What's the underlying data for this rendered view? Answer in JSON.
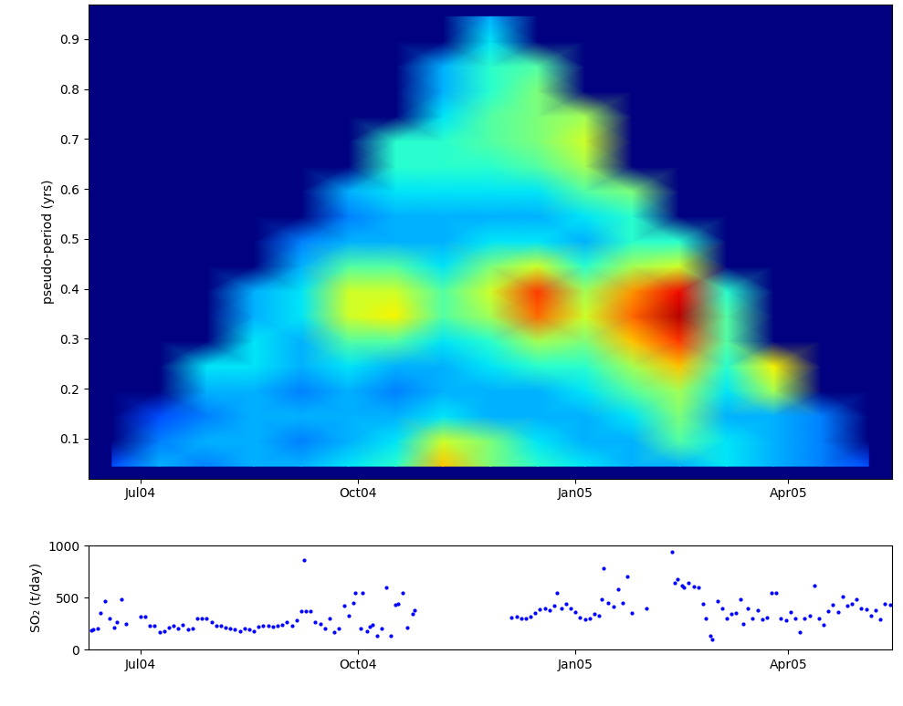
{
  "chart_data": [
    {
      "type": "heatmap",
      "ylabel": "pseudo-period (yrs)",
      "xlim": [
        160,
        500
      ],
      "ylim": [
        0.02,
        0.97
      ],
      "xticks": [
        {
          "value": 182,
          "label": "Jul04"
        },
        {
          "value": 274,
          "label": "Oct04"
        },
        {
          "value": 366,
          "label": "Jan05"
        },
        {
          "value": 456,
          "label": "Apr05"
        }
      ],
      "yticks": [
        0.1,
        0.2,
        0.3,
        0.4,
        0.5,
        0.6,
        0.7,
        0.8,
        0.9
      ],
      "zlim": [
        0,
        1
      ],
      "x": [
        170,
        190,
        210,
        230,
        250,
        270,
        290,
        310,
        330,
        350,
        370,
        390,
        410,
        430,
        450,
        470,
        490
      ],
      "y": [
        0.045,
        0.095,
        0.145,
        0.195,
        0.245,
        0.295,
        0.345,
        0.395,
        0.445,
        0.495,
        0.545,
        0.595,
        0.645,
        0.695,
        0.745,
        0.795,
        0.845,
        0.895,
        0.945
      ],
      "cells": [
        [
          0.2,
          0.3,
          0.25,
          0.3,
          0.3,
          0.35,
          0.4,
          0.7,
          0.5,
          0.4,
          0.35,
          0.3,
          0.3,
          0.35,
          0.3,
          0.25,
          0.2
        ],
        [
          0,
          0.25,
          0.3,
          0.3,
          0.25,
          0.3,
          0.35,
          0.6,
          0.5,
          0.35,
          0.3,
          0.3,
          0.45,
          0.35,
          0.3,
          0.25,
          0
        ],
        [
          0,
          0.2,
          0.25,
          0.3,
          0.3,
          0.3,
          0.3,
          0.35,
          0.3,
          0.3,
          0.3,
          0.35,
          0.5,
          0.3,
          0.3,
          0.25,
          0
        ],
        [
          0,
          0,
          0.3,
          0.3,
          0.25,
          0.3,
          0.25,
          0.3,
          0.3,
          0.3,
          0.35,
          0.45,
          0.55,
          0.35,
          0.55,
          0,
          0
        ],
        [
          0,
          0,
          0.35,
          0.35,
          0.3,
          0.35,
          0.3,
          0.3,
          0.35,
          0.4,
          0.4,
          0.55,
          0.7,
          0.4,
          0.65,
          0,
          0
        ],
        [
          0,
          0,
          0,
          0.35,
          0.3,
          0.45,
          0.45,
          0.35,
          0.4,
          0.55,
          0.5,
          0.7,
          0.85,
          0.45,
          0,
          0,
          0
        ],
        [
          0,
          0,
          0,
          0.3,
          0.35,
          0.6,
          0.65,
          0.45,
          0.55,
          0.8,
          0.6,
          0.8,
          0.95,
          0.45,
          0,
          0,
          0
        ],
        [
          0,
          0,
          0,
          0.3,
          0.35,
          0.6,
          0.6,
          0.45,
          0.6,
          0.85,
          0.55,
          0.75,
          0.9,
          0.4,
          0,
          0,
          0
        ],
        [
          0,
          0,
          0,
          0,
          0.3,
          0.45,
          0.45,
          0.35,
          0.5,
          0.6,
          0.4,
          0.55,
          0.6,
          0,
          0,
          0,
          0
        ],
        [
          0,
          0,
          0,
          0,
          0.25,
          0.3,
          0.3,
          0.3,
          0.35,
          0.35,
          0.3,
          0.4,
          0.4,
          0,
          0,
          0,
          0
        ],
        [
          0,
          0,
          0,
          0,
          0,
          0.25,
          0.3,
          0.3,
          0.3,
          0.3,
          0.35,
          0.4,
          0,
          0,
          0,
          0,
          0
        ],
        [
          0,
          0,
          0,
          0,
          0,
          0.3,
          0.35,
          0.35,
          0.35,
          0.35,
          0.45,
          0.5,
          0,
          0,
          0,
          0,
          0
        ],
        [
          0,
          0,
          0,
          0,
          0,
          0,
          0.4,
          0.4,
          0.4,
          0.45,
          0.55,
          0,
          0,
          0,
          0,
          0,
          0
        ],
        [
          0,
          0,
          0,
          0,
          0,
          0,
          0.4,
          0.4,
          0.45,
          0.5,
          0.6,
          0,
          0,
          0,
          0,
          0,
          0
        ],
        [
          0,
          0,
          0,
          0,
          0,
          0,
          0,
          0.35,
          0.45,
          0.5,
          0.55,
          0,
          0,
          0,
          0,
          0,
          0
        ],
        [
          0,
          0,
          0,
          0,
          0,
          0,
          0,
          0.3,
          0.4,
          0.5,
          0,
          0,
          0,
          0,
          0,
          0,
          0
        ],
        [
          0,
          0,
          0,
          0,
          0,
          0,
          0,
          0.3,
          0.4,
          0.45,
          0,
          0,
          0,
          0,
          0,
          0,
          0
        ],
        [
          0,
          0,
          0,
          0,
          0,
          0,
          0,
          0,
          0.35,
          0,
          0,
          0,
          0,
          0,
          0,
          0,
          0
        ],
        [
          0,
          0,
          0,
          0,
          0,
          0,
          0,
          0,
          0.3,
          0,
          0,
          0,
          0,
          0,
          0,
          0,
          0
        ]
      ]
    },
    {
      "type": "scatter",
      "ylabel": "SO₂ (t/day)",
      "xlim": [
        160,
        500
      ],
      "ylim": [
        0,
        1000
      ],
      "xticks": [
        {
          "value": 182,
          "label": "Jul04"
        },
        {
          "value": 274,
          "label": "Oct04"
        },
        {
          "value": 366,
          "label": "Jan05"
        },
        {
          "value": 456,
          "label": "Apr05"
        }
      ],
      "yticks": [
        0,
        500,
        1000
      ],
      "color": "#0000ff",
      "marker": ".",
      "x": [
        161,
        162,
        164,
        165,
        167,
        169,
        171,
        172,
        174,
        176,
        182,
        184,
        186,
        188,
        190,
        192,
        194,
        196,
        198,
        200,
        202,
        204,
        206,
        208,
        210,
        212,
        214,
        216,
        218,
        220,
        222,
        224,
        226,
        228,
        230,
        232,
        234,
        236,
        238,
        240,
        242,
        244,
        246,
        248,
        250,
        251,
        252,
        254,
        256,
        258,
        260,
        262,
        264,
        266,
        268,
        270,
        272,
        273,
        275,
        276,
        278,
        279,
        280,
        282,
        284,
        286,
        288,
        290,
        291,
        293,
        295,
        297,
        298,
        339,
        341,
        343,
        345,
        347,
        349,
        351,
        353,
        355,
        357,
        358,
        360,
        362,
        364,
        366,
        368,
        370,
        372,
        374,
        376,
        377,
        378,
        380,
        382,
        384,
        386,
        388,
        390,
        396,
        407,
        408,
        409,
        411,
        412,
        414,
        416,
        418,
        420,
        421,
        423,
        424,
        426,
        428,
        430,
        432,
        434,
        436,
        437,
        439,
        441,
        443,
        445,
        447,
        449,
        451,
        453,
        455,
        457,
        459,
        461,
        463,
        465,
        467,
        469,
        471,
        473,
        475,
        477,
        479,
        481,
        483,
        485,
        487,
        489,
        491,
        493,
        495,
        497,
        499
      ],
      "values": [
        185,
        190,
        200,
        350,
        470,
        300,
        210,
        260,
        480,
        250,
        320,
        320,
        230,
        230,
        170,
        180,
        210,
        230,
        200,
        240,
        190,
        200,
        300,
        300,
        300,
        260,
        230,
        230,
        210,
        200,
        190,
        180,
        200,
        190,
        180,
        220,
        230,
        230,
        220,
        230,
        240,
        260,
        230,
        280,
        370,
        860,
        370,
        370,
        260,
        250,
        200,
        300,
        170,
        200,
        420,
        330,
        450,
        550,
        200,
        550,
        180,
        220,
        240,
        130,
        200,
        600,
        130,
        430,
        440,
        550,
        210,
        340,
        380,
        310,
        320,
        300,
        300,
        320,
        350,
        390,
        400,
        380,
        420,
        550,
        400,
        440,
        400,
        360,
        310,
        290,
        300,
        340,
        330,
        480,
        780,
        450,
        410,
        580,
        450,
        700,
        350,
        400,
        940,
        640,
        680,
        620,
        600,
        640,
        610,
        600,
        440,
        300,
        130,
        100,
        470,
        400,
        300,
        340,
        350,
        480,
        250,
        400,
        300,
        380,
        290,
        310,
        550,
        550,
        300,
        280,
        360,
        300,
        170,
        300,
        330,
        620,
        300,
        240,
        370,
        430,
        360,
        510,
        420,
        440,
        480,
        400,
        390,
        330,
        380,
        290,
        440,
        430
      ]
    }
  ]
}
